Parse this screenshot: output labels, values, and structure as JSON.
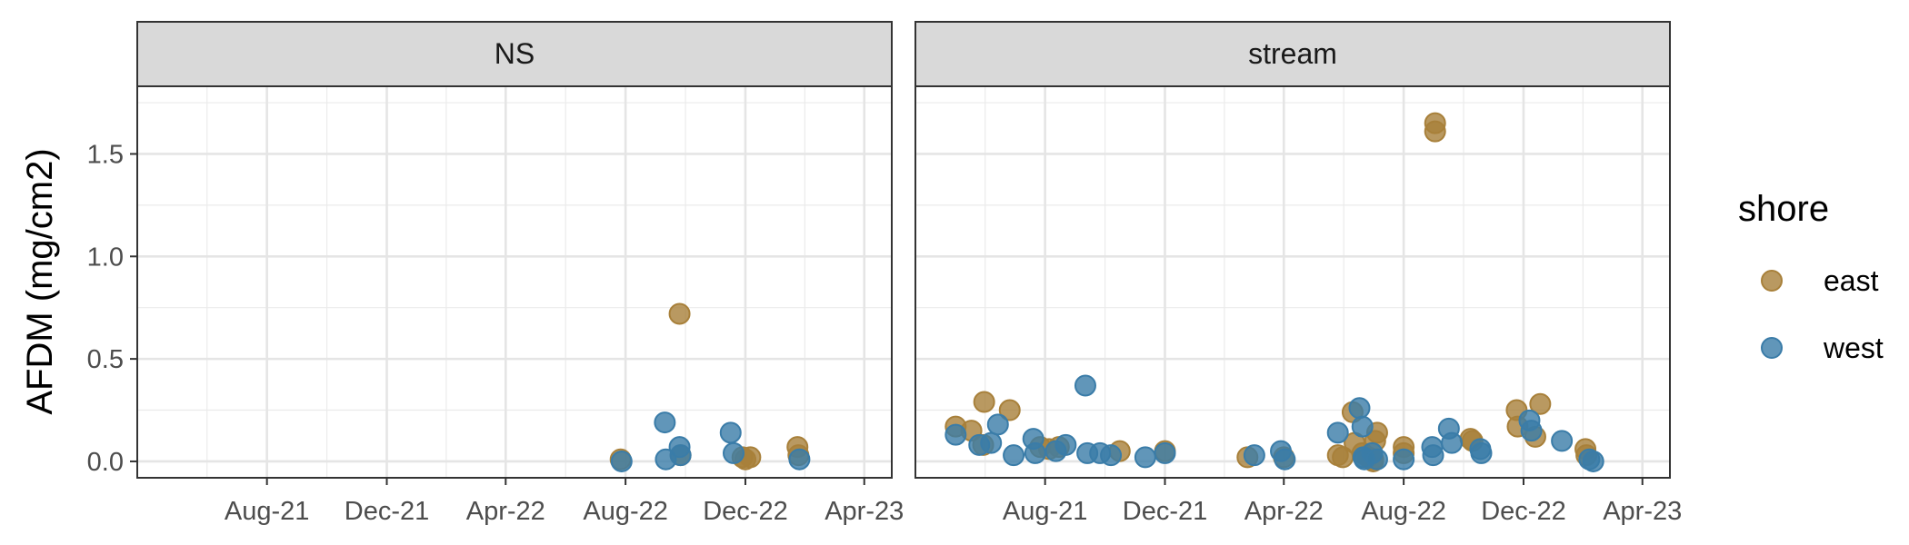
{
  "chart_data": {
    "type": "scatter",
    "ylabel": "AFDM (mg/cm2)",
    "ylim": [
      -0.08,
      1.83
    ],
    "yticks": [
      0.0,
      0.5,
      1.0,
      1.5
    ],
    "ytick_labels": [
      "0.0",
      "0.5",
      "1.0",
      "1.5"
    ],
    "xlim": [
      "2021-03-22",
      "2023-04-29"
    ],
    "xticks": [
      "2021-08-01",
      "2021-12-01",
      "2022-04-01",
      "2022-08-01",
      "2022-12-01",
      "2023-04-01"
    ],
    "xtick_labels": [
      "Aug-21",
      "Dec-21",
      "Apr-22",
      "Aug-22",
      "Dec-22",
      "Apr-23"
    ],
    "grid": true,
    "legend": {
      "title": "shore",
      "position": "right",
      "entries": [
        {
          "name": "east",
          "color": "#A8803A"
        },
        {
          "name": "west",
          "color": "#3A7CA8"
        }
      ]
    },
    "panels": [
      {
        "title": "NS",
        "series": [
          {
            "name": "east",
            "points": [
              [
                "2022-07-27",
                0.01
              ],
              [
                "2022-09-25",
                0.72
              ],
              [
                "2022-09-26",
                0.03
              ],
              [
                "2022-11-28",
                0.02
              ],
              [
                "2022-12-01",
                0.01
              ],
              [
                "2022-12-06",
                0.02
              ],
              [
                "2023-01-23",
                0.07
              ],
              [
                "2023-01-24",
                0.03
              ]
            ]
          },
          {
            "name": "west",
            "points": [
              [
                "2022-07-28",
                0.0
              ],
              [
                "2022-09-10",
                0.19
              ],
              [
                "2022-09-11",
                0.01
              ],
              [
                "2022-09-25",
                0.07
              ],
              [
                "2022-09-26",
                0.03
              ],
              [
                "2022-11-16",
                0.14
              ],
              [
                "2022-11-19",
                0.04
              ],
              [
                "2023-01-25",
                0.01
              ]
            ]
          }
        ]
      },
      {
        "title": "stream",
        "series": [
          {
            "name": "east",
            "points": [
              [
                "2021-05-02",
                0.17
              ],
              [
                "2021-05-18",
                0.15
              ],
              [
                "2021-05-31",
                0.29
              ],
              [
                "2021-05-30",
                0.08
              ],
              [
                "2021-06-26",
                0.25
              ],
              [
                "2021-07-27",
                0.07
              ],
              [
                "2021-08-05",
                0.06
              ],
              [
                "2021-08-15",
                0.07
              ],
              [
                "2021-10-16",
                0.05
              ],
              [
                "2021-12-01",
                0.05
              ],
              [
                "2022-02-23",
                0.02
              ],
              [
                "2022-04-01",
                0.02
              ],
              [
                "2022-05-26",
                0.03
              ],
              [
                "2022-05-31",
                0.02
              ],
              [
                "2022-06-10",
                0.24
              ],
              [
                "2022-06-12",
                0.09
              ],
              [
                "2022-06-20",
                0.04
              ],
              [
                "2022-06-26",
                0.02
              ],
              [
                "2022-07-01",
                0.01
              ],
              [
                "2022-07-05",
                0.14
              ],
              [
                "2022-07-03",
                0.1
              ],
              [
                "2022-07-01",
                0.0
              ],
              [
                "2022-08-01",
                0.07
              ],
              [
                "2022-08-01",
                0.04
              ],
              [
                "2022-09-02",
                1.65
              ],
              [
                "2022-09-02",
                1.61
              ],
              [
                "2022-10-08",
                0.11
              ],
              [
                "2022-10-10",
                0.1
              ],
              [
                "2022-11-24",
                0.25
              ],
              [
                "2022-11-25",
                0.17
              ],
              [
                "2022-12-18",
                0.28
              ],
              [
                "2022-12-13",
                0.12
              ],
              [
                "2023-02-02",
                0.06
              ],
              [
                "2023-02-03",
                0.03
              ]
            ]
          },
          {
            "name": "west",
            "points": [
              [
                "2021-05-02",
                0.13
              ],
              [
                "2021-05-26",
                0.08
              ],
              [
                "2021-06-07",
                0.09
              ],
              [
                "2021-06-14",
                0.18
              ],
              [
                "2021-06-30",
                0.03
              ],
              [
                "2021-07-20",
                0.11
              ],
              [
                "2021-07-22",
                0.04
              ],
              [
                "2021-08-12",
                0.05
              ],
              [
                "2021-08-22",
                0.08
              ],
              [
                "2021-09-11",
                0.37
              ],
              [
                "2021-09-13",
                0.04
              ],
              [
                "2021-09-26",
                0.04
              ],
              [
                "2021-10-07",
                0.03
              ],
              [
                "2021-11-11",
                0.02
              ],
              [
                "2021-12-01",
                0.04
              ],
              [
                "2022-03-02",
                0.03
              ],
              [
                "2022-03-29",
                0.05
              ],
              [
                "2022-04-02",
                0.01
              ],
              [
                "2022-05-26",
                0.14
              ],
              [
                "2022-06-17",
                0.26
              ],
              [
                "2022-06-20",
                0.17
              ],
              [
                "2022-06-21",
                0.02
              ],
              [
                "2022-06-22",
                0.01
              ],
              [
                "2022-06-30",
                0.04
              ],
              [
                "2022-07-05",
                0.01
              ],
              [
                "2022-08-01",
                0.01
              ],
              [
                "2022-08-30",
                0.07
              ],
              [
                "2022-08-31",
                0.03
              ],
              [
                "2022-09-16",
                0.16
              ],
              [
                "2022-09-19",
                0.09
              ],
              [
                "2022-10-18",
                0.06
              ],
              [
                "2022-10-19",
                0.04
              ],
              [
                "2022-12-07",
                0.2
              ],
              [
                "2022-12-09",
                0.15
              ],
              [
                "2023-01-09",
                0.1
              ],
              [
                "2023-02-06",
                0.01
              ],
              [
                "2023-02-10",
                0.0
              ]
            ]
          }
        ]
      }
    ]
  }
}
